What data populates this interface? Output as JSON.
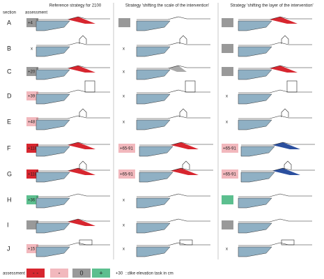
{
  "header": {
    "section": "section",
    "assessment": "assessment",
    "columns": [
      "Reference strategy for 2100",
      "Strategy 'shifting the scale of the intervention'",
      "Strategy 'shifting the layer of the intervention'"
    ]
  },
  "rows": [
    {
      "section": "A",
      "cells": [
        {
          "label": "+4",
          "color": "#999999"
        },
        {
          "color": "#999999"
        },
        {
          "color": "#999999"
        }
      ]
    },
    {
      "section": "B",
      "cells": [
        {
          "label": "x"
        },
        {
          "label": "x"
        },
        {
          "color": "#999999"
        }
      ]
    },
    {
      "section": "C",
      "cells": [
        {
          "label": "+20",
          "color": "#999999"
        },
        {
          "label": "x"
        },
        {
          "color": "#999999"
        }
      ]
    },
    {
      "section": "D",
      "cells": [
        {
          "label": "+39",
          "color": "#f2b8bd"
        },
        {
          "label": "x"
        },
        {
          "label": "x"
        }
      ]
    },
    {
      "section": "E",
      "cells": [
        {
          "label": "+48",
          "color": "#f2b8bd"
        },
        {
          "label": "x"
        },
        {
          "label": "x"
        }
      ]
    },
    {
      "section": "F",
      "cells": [
        {
          "label": "+118",
          "color": "#d7262f"
        },
        {
          "label": "+65-91",
          "color": "#f2b8bd"
        },
        {
          "label": "+65-91",
          "color": "#f2b8bd"
        }
      ]
    },
    {
      "section": "G",
      "cells": [
        {
          "label": "+118",
          "color": "#d7262f"
        },
        {
          "label": "+65-91",
          "color": "#f2b8bd"
        },
        {
          "label": "+65-91",
          "color": "#f2b8bd"
        }
      ]
    },
    {
      "section": "H",
      "cells": [
        {
          "label": "+36",
          "color": "#5cbf8f"
        },
        {
          "label": "x"
        },
        {
          "color": "#5cbf8f"
        }
      ]
    },
    {
      "section": "I",
      "cells": [
        {
          "color": "#999999"
        },
        {
          "label": "x"
        },
        {
          "color": "#999999"
        }
      ]
    },
    {
      "section": "J",
      "cells": [
        {
          "label": "+15",
          "color": "#f2b8bd"
        },
        {
          "label": "x"
        },
        {
          "label": "x"
        }
      ]
    }
  ],
  "legend": {
    "title": "assessment",
    "items": [
      {
        "label": "- -",
        "color": "#d7262f"
      },
      {
        "label": "-",
        "color": "#f2b8bd"
      },
      {
        "label": "0",
        "color": "#999999"
      },
      {
        "label": "+",
        "color": "#5cbf8f"
      }
    ],
    "example": "+30",
    "example_text": "::dike elevation task in cm"
  }
}
